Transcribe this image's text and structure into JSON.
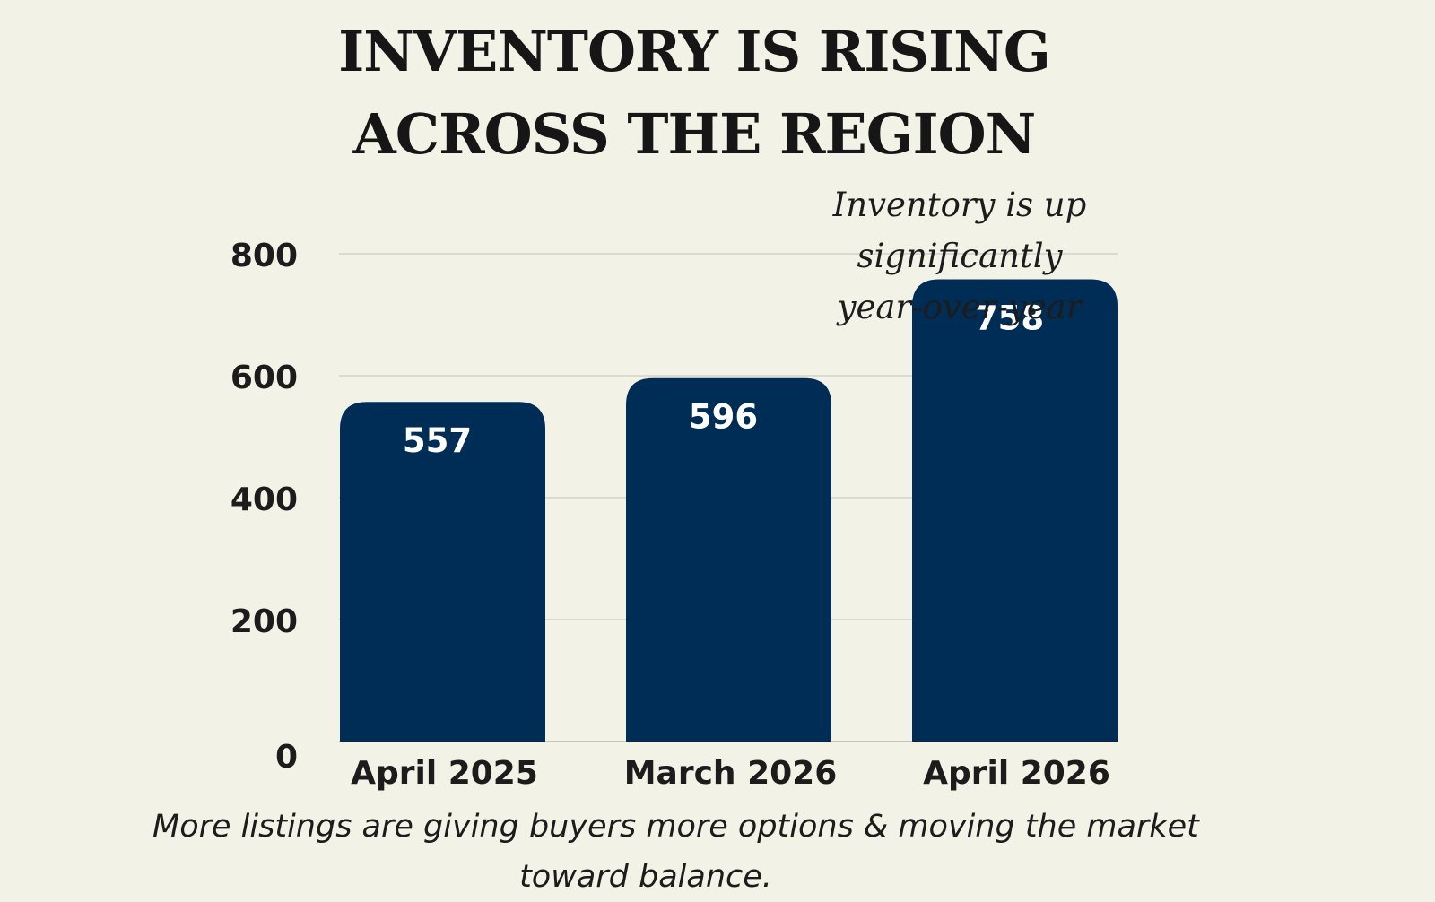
{
  "chart_data": {
    "type": "bar",
    "title_lines": [
      "INVENTORY IS RISING",
      "ACROSS THE REGION"
    ],
    "categories": [
      "April 2025",
      "March 2026",
      "April 2026"
    ],
    "values": [
      557,
      596,
      758
    ],
    "data_labels": [
      "557",
      "596",
      "758"
    ],
    "y_ticks": [
      "800",
      "600",
      "400",
      "200",
      "0"
    ],
    "y_tick_values": [
      800,
      600,
      400,
      200,
      0
    ],
    "ylim": [
      0,
      800
    ],
    "grid": true,
    "bar_color": "#002d56",
    "grid_color": "#d2d2c8",
    "annotation_lines": [
      "Inventory is up significantly",
      "year-over-year"
    ],
    "footer_lines": [
      "More listings are giving buyers more options & moving the market",
      "toward balance."
    ]
  }
}
